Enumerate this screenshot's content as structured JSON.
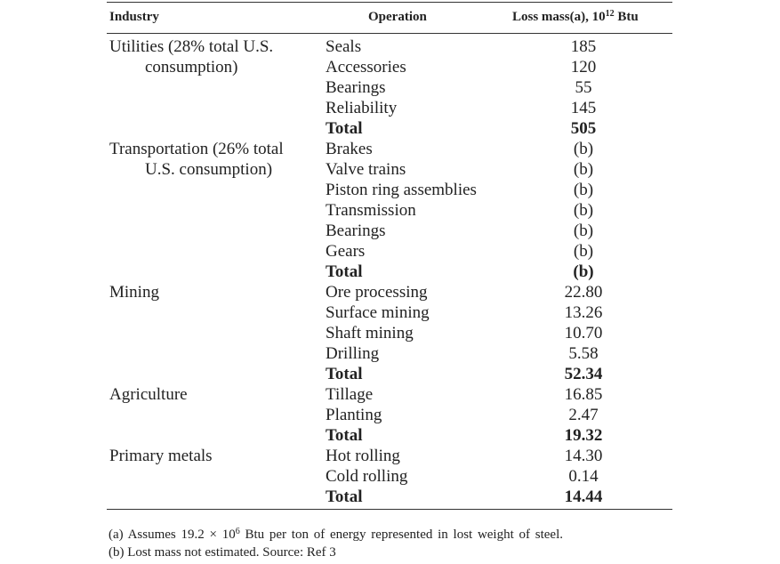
{
  "header": {
    "industry": "Industry",
    "operation": "Operation",
    "loss": {
      "text": "Loss mass(a), 10",
      "sup": "12",
      "unit": "Btu"
    }
  },
  "groups": [
    {
      "industry": [
        "Utilities (28% total U.S.",
        "consumption)"
      ],
      "rows": [
        [
          "Seals",
          "185"
        ],
        [
          "Accessories",
          "120"
        ],
        [
          "Bearings",
          "55"
        ],
        [
          "Reliability",
          "145"
        ],
        [
          "Total",
          "505"
        ]
      ]
    },
    {
      "industry": [
        "Transportation (26% total",
        "U.S. consumption)"
      ],
      "rows": [
        [
          "Brakes",
          "(b)"
        ],
        [
          "Valve trains",
          "(b)"
        ],
        [
          "Piston ring assemblies",
          "(b)"
        ],
        [
          "Transmission",
          "(b)"
        ],
        [
          "Bearings",
          "(b)"
        ],
        [
          "Gears",
          "(b)"
        ],
        [
          "Total",
          "(b)"
        ]
      ]
    },
    {
      "industry": [
        "Mining"
      ],
      "rows": [
        [
          "Ore processing",
          "22.80"
        ],
        [
          "Surface mining",
          "13.26"
        ],
        [
          "Shaft mining",
          "10.70"
        ],
        [
          "Drilling",
          "5.58"
        ],
        [
          "Total",
          "52.34"
        ]
      ]
    },
    {
      "industry": [
        "Agriculture"
      ],
      "rows": [
        [
          "Tillage",
          "16.85"
        ],
        [
          "Planting",
          "2.47"
        ],
        [
          "Total",
          "19.32"
        ]
      ]
    },
    {
      "industry": [
        "Primary metals"
      ],
      "rows": [
        [
          "Hot rolling",
          "14.30"
        ],
        [
          "Cold rolling",
          "0.14"
        ],
        [
          "Total",
          "14.44"
        ]
      ]
    }
  ],
  "footnotes": {
    "a": {
      "text": "(a) Assumes 19.2 × 10",
      "sup": "6",
      "rest": "Btu per ton of energy represented in lost weight of steel."
    },
    "b": "(b) Lost mass not estimated. Source: Ref 3"
  }
}
